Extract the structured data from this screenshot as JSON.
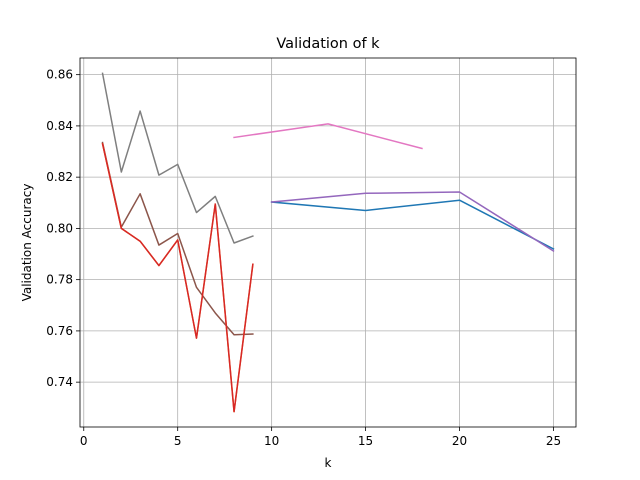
{
  "chart_data": {
    "type": "line",
    "title": "Validation of k",
    "xlabel": "k",
    "ylabel": "Validation Accuracy",
    "xlim": [
      -0.2,
      26.2
    ],
    "ylim": [
      0.7225,
      0.8665
    ],
    "xticks": [
      0,
      5,
      10,
      15,
      20,
      25
    ],
    "yticks": [
      0.74,
      0.76,
      0.78,
      0.8,
      0.82,
      0.84,
      0.86
    ],
    "grid": true,
    "series": [
      {
        "color": "#1f77b4",
        "x": [
          10,
          15,
          20,
          25
        ],
        "y": [
          0.8103,
          0.807,
          0.811,
          0.792
        ]
      },
      {
        "color": "#8c564b",
        "x": [
          1,
          2,
          3,
          4,
          5,
          6,
          7,
          8,
          9
        ],
        "y": [
          0.8335,
          0.8005,
          0.8135,
          0.7935,
          0.798,
          0.777,
          0.767,
          0.7585,
          0.7588
        ]
      },
      {
        "color": "#ff7f0e",
        "x": [
          1,
          2,
          3,
          4,
          5,
          6,
          7,
          8,
          9
        ],
        "y": [
          0.833,
          0.8,
          0.795,
          0.7855,
          0.7955,
          0.7572,
          0.8095,
          0.7285,
          0.786
        ]
      },
      {
        "color": "#d62728",
        "x": [
          1,
          2,
          3,
          4,
          5,
          6,
          7,
          8,
          9
        ],
        "y": [
          0.833,
          0.8,
          0.795,
          0.7855,
          0.7955,
          0.7572,
          0.8095,
          0.7285,
          0.786
        ]
      },
      {
        "color": "#7f7f7f",
        "x": [
          1,
          2,
          3,
          4,
          5,
          6,
          7,
          8,
          9
        ],
        "y": [
          0.8605,
          0.822,
          0.8458,
          0.8208,
          0.825,
          0.8062,
          0.8125,
          0.7943,
          0.797
        ]
      },
      {
        "color": "#e377c2",
        "x": [
          8,
          13,
          18
        ],
        "y": [
          0.8355,
          0.8408,
          0.8312
        ]
      },
      {
        "color": "#9467bd",
        "x": [
          10,
          15,
          20,
          25
        ],
        "y": [
          0.8103,
          0.8137,
          0.8142,
          0.7912
        ]
      }
    ]
  }
}
